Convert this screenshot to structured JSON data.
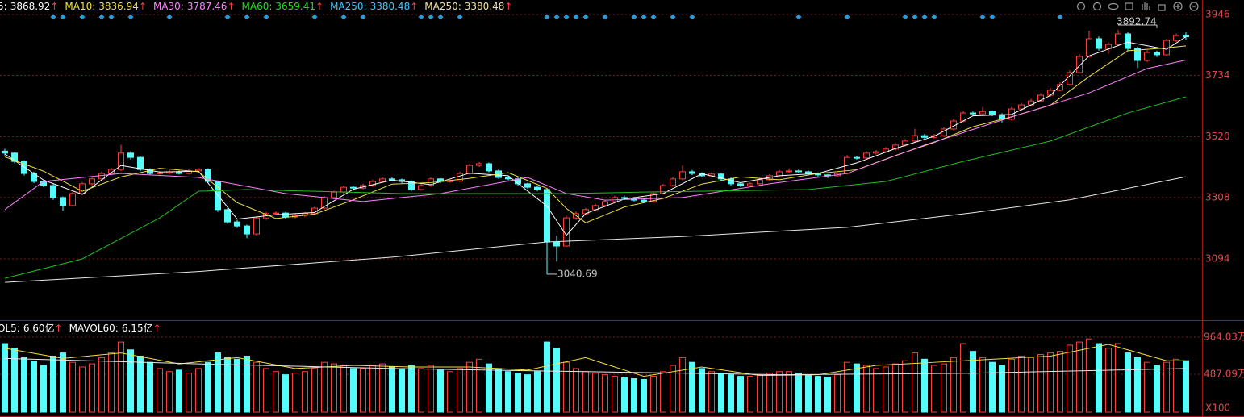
{
  "chart_data": {
    "type": "candlestick",
    "legend": [
      {
        "label": "5:",
        "value": 3868.92,
        "trend": "↑",
        "color": "#ffffff"
      },
      {
        "label": "MA10:",
        "value": 3836.94,
        "trend": "↑",
        "color": "#f0e040"
      },
      {
        "label": "MA30:",
        "value": 3787.46,
        "trend": "↑",
        "color": "#ff80ff"
      },
      {
        "label": "MA60:",
        "value": 3659.41,
        "trend": "↑",
        "color": "#20e020"
      },
      {
        "label": "MA250:",
        "value": 3380.48,
        "trend": "↑",
        "color": "#40c8ff"
      },
      {
        "label": "MA250:",
        "value": 3380.48,
        "trend": "↑",
        "color": "#f0e0a0"
      }
    ],
    "ylim": [
      2883,
      3997
    ],
    "yticks": [
      3094,
      3308,
      3520,
      3734,
      3946
    ],
    "up_color": "#ff3c3c",
    "down_color": "#54fcfc",
    "candles": [
      [
        3470,
        3478,
        3455,
        3463
      ],
      [
        3463,
        3466,
        3428,
        3434
      ],
      [
        3434,
        3438,
        3385,
        3392
      ],
      [
        3392,
        3398,
        3358,
        3364
      ],
      [
        3364,
        3370,
        3344,
        3350
      ],
      [
        3350,
        3355,
        3300,
        3308
      ],
      [
        3308,
        3312,
        3262,
        3280
      ],
      [
        3280,
        3328,
        3276,
        3322
      ],
      [
        3322,
        3362,
        3318,
        3356
      ],
      [
        3356,
        3380,
        3350,
        3373
      ],
      [
        3373,
        3398,
        3368,
        3392
      ],
      [
        3392,
        3412,
        3386,
        3406
      ],
      [
        3406,
        3492,
        3400,
        3463
      ],
      [
        3463,
        3470,
        3440,
        3448
      ],
      [
        3448,
        3452,
        3400,
        3406
      ],
      [
        3406,
        3410,
        3386,
        3392
      ],
      [
        3392,
        3400,
        3388,
        3394
      ],
      [
        3394,
        3404,
        3390,
        3398
      ],
      [
        3398,
        3402,
        3388,
        3392
      ],
      [
        3392,
        3408,
        3388,
        3401
      ],
      [
        3401,
        3412,
        3396,
        3406
      ],
      [
        3406,
        3410,
        3358,
        3364
      ],
      [
        3364,
        3368,
        3258,
        3266
      ],
      [
        3266,
        3272,
        3216,
        3223
      ],
      [
        3223,
        3230,
        3202,
        3209
      ],
      [
        3209,
        3214,
        3166,
        3181
      ],
      [
        3181,
        3242,
        3176,
        3237
      ],
      [
        3237,
        3258,
        3230,
        3252
      ],
      [
        3252,
        3260,
        3246,
        3254
      ],
      [
        3254,
        3258,
        3234,
        3240
      ],
      [
        3240,
        3252,
        3236,
        3246
      ],
      [
        3246,
        3258,
        3240,
        3252
      ],
      [
        3252,
        3276,
        3248,
        3271
      ],
      [
        3271,
        3314,
        3266,
        3308
      ],
      [
        3308,
        3332,
        3302,
        3327
      ],
      [
        3327,
        3350,
        3322,
        3344
      ],
      [
        3344,
        3348,
        3336,
        3341
      ],
      [
        3341,
        3356,
        3336,
        3350
      ],
      [
        3350,
        3370,
        3346,
        3364
      ],
      [
        3364,
        3380,
        3360,
        3373
      ],
      [
        3373,
        3378,
        3365,
        3370
      ],
      [
        3370,
        3374,
        3358,
        3364
      ],
      [
        3364,
        3368,
        3330,
        3336
      ],
      [
        3336,
        3356,
        3332,
        3350
      ],
      [
        3350,
        3378,
        3346,
        3373
      ],
      [
        3373,
        3376,
        3358,
        3364
      ],
      [
        3364,
        3372,
        3360,
        3366
      ],
      [
        3366,
        3398,
        3362,
        3392
      ],
      [
        3392,
        3426,
        3388,
        3420
      ],
      [
        3420,
        3432,
        3414,
        3426
      ],
      [
        3426,
        3430,
        3396,
        3401
      ],
      [
        3401,
        3406,
        3372,
        3378
      ],
      [
        3378,
        3382,
        3368,
        3373
      ],
      [
        3373,
        3378,
        3350,
        3356
      ],
      [
        3356,
        3360,
        3338,
        3344
      ],
      [
        3344,
        3348,
        3330,
        3336
      ],
      [
        3336,
        3340,
        3040.69,
        3153
      ],
      [
        3153,
        3175,
        3085,
        3139
      ],
      [
        3139,
        3244,
        3135,
        3237
      ],
      [
        3237,
        3260,
        3230,
        3252
      ],
      [
        3252,
        3272,
        3246,
        3266
      ],
      [
        3266,
        3286,
        3260,
        3280
      ],
      [
        3280,
        3300,
        3274,
        3294
      ],
      [
        3294,
        3314,
        3290,
        3308
      ],
      [
        3308,
        3314,
        3300,
        3306
      ],
      [
        3306,
        3310,
        3294,
        3299
      ],
      [
        3299,
        3302,
        3288,
        3294
      ],
      [
        3294,
        3328,
        3290,
        3322
      ],
      [
        3322,
        3356,
        3318,
        3350
      ],
      [
        3350,
        3380,
        3346,
        3373
      ],
      [
        3373,
        3420,
        3368,
        3398
      ],
      [
        3398,
        3404,
        3386,
        3392
      ],
      [
        3392,
        3396,
        3378,
        3384
      ],
      [
        3384,
        3396,
        3380,
        3390
      ],
      [
        3390,
        3394,
        3368,
        3373
      ],
      [
        3373,
        3378,
        3350,
        3356
      ],
      [
        3356,
        3360,
        3344,
        3350
      ],
      [
        3350,
        3362,
        3346,
        3356
      ],
      [
        3356,
        3376,
        3352,
        3370
      ],
      [
        3370,
        3390,
        3366,
        3384
      ],
      [
        3384,
        3404,
        3380,
        3398
      ],
      [
        3398,
        3410,
        3394,
        3401
      ],
      [
        3401,
        3406,
        3392,
        3398
      ],
      [
        3398,
        3402,
        3386,
        3392
      ],
      [
        3392,
        3396,
        3380,
        3387
      ],
      [
        3387,
        3390,
        3376,
        3384
      ],
      [
        3384,
        3398,
        3380,
        3392
      ],
      [
        3392,
        3456,
        3388,
        3448
      ],
      [
        3448,
        3454,
        3440,
        3446
      ],
      [
        3446,
        3470,
        3442,
        3463
      ],
      [
        3463,
        3474,
        3458,
        3468
      ],
      [
        3468,
        3484,
        3464,
        3477
      ],
      [
        3477,
        3498,
        3472,
        3491
      ],
      [
        3491,
        3512,
        3486,
        3505
      ],
      [
        3505,
        3548,
        3500,
        3524
      ],
      [
        3524,
        3530,
        3512,
        3518
      ],
      [
        3518,
        3530,
        3514,
        3524
      ],
      [
        3524,
        3554,
        3520,
        3547
      ],
      [
        3547,
        3582,
        3542,
        3575
      ],
      [
        3575,
        3610,
        3570,
        3603
      ],
      [
        3603,
        3608,
        3594,
        3600
      ],
      [
        3600,
        3624,
        3596,
        3608
      ],
      [
        3608,
        3612,
        3592,
        3597
      ],
      [
        3597,
        3602,
        3570,
        3581
      ],
      [
        3581,
        3624,
        3576,
        3617
      ],
      [
        3617,
        3638,
        3612,
        3631
      ],
      [
        3631,
        3652,
        3626,
        3645
      ],
      [
        3645,
        3672,
        3640,
        3665
      ],
      [
        3665,
        3690,
        3660,
        3682
      ],
      [
        3682,
        3710,
        3678,
        3702
      ],
      [
        3702,
        3752,
        3698,
        3744
      ],
      [
        3744,
        3808,
        3740,
        3800
      ],
      [
        3800,
        3890,
        3796,
        3862
      ],
      [
        3862,
        3870,
        3820,
        3828
      ],
      [
        3828,
        3850,
        3810,
        3842
      ],
      [
        3842,
        3892.74,
        3836,
        3879
      ],
      [
        3879,
        3884,
        3820,
        3828
      ],
      [
        3828,
        3834,
        3760,
        3786
      ],
      [
        3786,
        3822,
        3780,
        3814
      ],
      [
        3814,
        3820,
        3798,
        3806
      ],
      [
        3806,
        3862,
        3802,
        3856
      ],
      [
        3856,
        3880,
        3850,
        3873
      ],
      [
        3873,
        3884,
        3858,
        3868.92
      ]
    ],
    "high_low_labels": [
      3892.74,
      3040.69
    ],
    "signal_markers": [
      5,
      6,
      8,
      10,
      11,
      13,
      17,
      23,
      25,
      27,
      32,
      35,
      37,
      43,
      44,
      45,
      47,
      56,
      57,
      58,
      59,
      60,
      62,
      65,
      66,
      67,
      69,
      71,
      82,
      87,
      93,
      94,
      95,
      96,
      101,
      102,
      109
    ],
    "ma_lines": [
      {
        "color": "#ffffff",
        "x": [
          0,
          4,
          8,
          12,
          16,
          20,
          24,
          28,
          32,
          36,
          40,
          44,
          48,
          52,
          56,
          58,
          60,
          64,
          68,
          72,
          76,
          80,
          84,
          88,
          92,
          96,
          100,
          104,
          108,
          112,
          116,
          120,
          122
        ],
        "values": [
          3460,
          3369,
          3319,
          3420,
          3397,
          3400,
          3233,
          3248,
          3256,
          3337,
          3369,
          3353,
          3393,
          3384,
          3278,
          3176,
          3252,
          3303,
          3322,
          3391,
          3360,
          3384,
          3392,
          3429,
          3479,
          3522,
          3593,
          3598,
          3664,
          3802,
          3850,
          3825,
          3868.92
        ]
      },
      {
        "color": "#f0e040",
        "x": [
          0,
          4,
          8,
          12,
          16,
          20,
          24,
          28,
          32,
          36,
          40,
          44,
          48,
          52,
          56,
          58,
          60,
          64,
          68,
          72,
          76,
          80,
          84,
          88,
          92,
          96,
          100,
          104,
          108,
          112,
          116,
          120,
          122
        ],
        "values": [
          3450,
          3400,
          3330,
          3380,
          3410,
          3398,
          3290,
          3235,
          3250,
          3300,
          3355,
          3360,
          3375,
          3395,
          3340,
          3270,
          3220,
          3275,
          3305,
          3355,
          3380,
          3370,
          3392,
          3405,
          3455,
          3500,
          3555,
          3590,
          3630,
          3730,
          3820,
          3830,
          3836.94
        ]
      },
      {
        "color": "#ff80ff",
        "x": [
          0,
          4,
          12,
          20,
          29,
          37,
          45,
          54,
          58,
          62,
          70,
          79,
          87,
          95,
          104,
          112,
          118,
          122
        ],
        "values": [
          3266,
          3364,
          3392,
          3378,
          3322,
          3294,
          3322,
          3378,
          3322,
          3299,
          3308,
          3356,
          3392,
          3491,
          3589,
          3673,
          3758,
          3787.46
        ]
      },
      {
        "color": "#20c020",
        "x": [
          0,
          8,
          16,
          20,
          25,
          41,
          58,
          66,
          83,
          91,
          99,
          108,
          116,
          122
        ],
        "values": [
          3026,
          3094,
          3237,
          3330,
          3336,
          3322,
          3322,
          3327,
          3336,
          3364,
          3434,
          3505,
          3603,
          3659.41
        ]
      },
      {
        "color": "#e8e8e8",
        "x": [
          0,
          20,
          40,
          56,
          70,
          87,
          100,
          110,
          122
        ],
        "values": [
          3012,
          3050,
          3100,
          3153,
          3172,
          3204,
          3255,
          3300,
          3380.48
        ]
      }
    ],
    "volume": {
      "legend": [
        {
          "label": "OL5:",
          "value": "6.60亿",
          "trend": "↑",
          "color": "#ffffff"
        },
        {
          "label": "MAVOL60:",
          "value": "6.15亿",
          "trend": "↑",
          "color": "#ffffff"
        }
      ],
      "ylim": [
        0,
        1170
      ],
      "yticks": [
        {
          "value": 964.03,
          "label": "964.03万"
        },
        {
          "value": 487.09,
          "label": "487.09万"
        }
      ],
      "unit_label": "X100",
      "values": [
        880,
        820,
        700,
        650,
        600,
        720,
        760,
        640,
        580,
        620,
        700,
        760,
        900,
        800,
        720,
        640,
        560,
        520,
        540,
        500,
        560,
        640,
        760,
        700,
        680,
        720,
        640,
        560,
        520,
        480,
        500,
        520,
        560,
        640,
        620,
        600,
        560,
        560,
        600,
        620,
        580,
        560,
        600,
        560,
        600,
        540,
        520,
        560,
        640,
        680,
        620,
        560,
        520,
        500,
        480,
        520,
        900,
        820,
        640,
        560,
        520,
        500,
        480,
        460,
        440,
        430,
        420,
        460,
        520,
        600,
        700,
        640,
        560,
        520,
        500,
        480,
        460,
        460,
        480,
        500,
        520,
        520,
        500,
        480,
        460,
        450,
        480,
        640,
        620,
        600,
        560,
        580,
        620,
        660,
        760,
        680,
        600,
        620,
        700,
        880,
        780,
        700,
        640,
        600,
        680,
        720,
        700,
        740,
        760,
        780,
        860,
        900,
        940,
        880,
        820,
        880,
        760,
        700,
        640,
        600,
        640,
        680,
        660
      ],
      "ma_lines": [
        {
          "color": "#f0e040",
          "x": [
            0,
            6,
            12,
            18,
            24,
            30,
            36,
            42,
            48,
            54,
            60,
            66,
            72,
            78,
            84,
            90,
            96,
            102,
            108,
            114,
            120,
            122
          ],
          "values": [
            820,
            690,
            760,
            620,
            700,
            560,
            600,
            580,
            580,
            540,
            700,
            460,
            580,
            470,
            480,
            600,
            640,
            680,
            720,
            870,
            660,
            660
          ]
        },
        {
          "color": "#e8e8e8",
          "x": [
            0,
            20,
            40,
            60,
            80,
            100,
            122
          ],
          "values": [
            690,
            620,
            560,
            520,
            480,
            500,
            560
          ]
        }
      ]
    }
  }
}
